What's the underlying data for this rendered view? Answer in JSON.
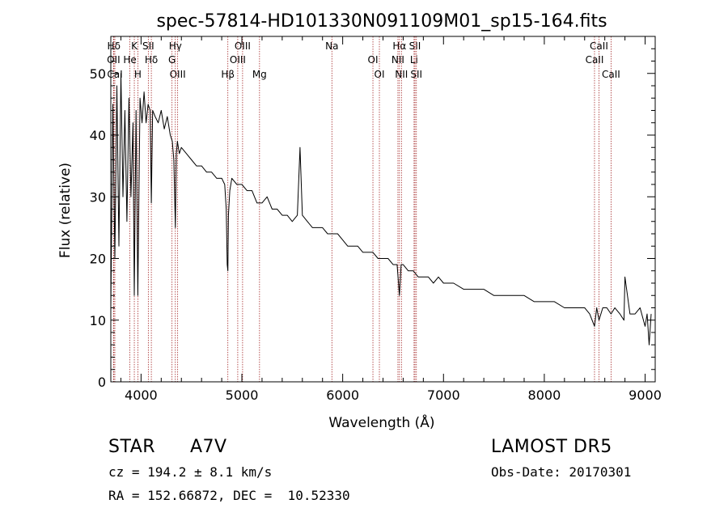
{
  "chart_data": {
    "type": "line",
    "title": "spec-57814-HD101330N091109M01_sp15-164.fits",
    "xlabel": "Wavelength (Å)",
    "ylabel": "Flux (relative)",
    "xlim": [
      3700,
      9100
    ],
    "ylim": [
      0,
      56
    ],
    "x_ticks": [
      "4000",
      "5000",
      "6000",
      "7000",
      "8000",
      "9000"
    ],
    "y_ticks": [
      "0",
      "10",
      "20",
      "30",
      "40",
      "50"
    ],
    "grid": false,
    "series": [
      {
        "x": [
          3700,
          3720,
          3740,
          3760,
          3780,
          3800,
          3820,
          3840,
          3860,
          3880,
          3900,
          3920,
          3933,
          3950,
          3968,
          3990,
          4010,
          4030,
          4050,
          4070,
          4090,
          4102,
          4115,
          4140,
          4170,
          4200,
          4230,
          4260,
          4290,
          4310,
          4325,
          4340,
          4350,
          4360,
          4380,
          4400,
          4450,
          4500,
          4550,
          4600,
          4650,
          4700,
          4750,
          4800,
          4830,
          4845,
          4855,
          4861,
          4867,
          4880,
          4900,
          4950,
          5000,
          5050,
          5100,
          5150,
          5200,
          5250,
          5300,
          5350,
          5400,
          5450,
          5500,
          5550,
          5577,
          5600,
          5650,
          5700,
          5750,
          5800,
          5850,
          5900,
          5950,
          6000,
          6050,
          6100,
          6150,
          6200,
          6250,
          6300,
          6350,
          6400,
          6450,
          6500,
          6540,
          6563,
          6580,
          6600,
          6650,
          6700,
          6750,
          6800,
          6850,
          6900,
          6950,
          7000,
          7100,
          7200,
          7300,
          7400,
          7500,
          7600,
          7700,
          7800,
          7900,
          8000,
          8100,
          8200,
          8300,
          8400,
          8450,
          8498,
          8520,
          8542,
          8580,
          8620,
          8662,
          8700,
          8750,
          8790,
          8800,
          8850,
          8900,
          8950,
          9000,
          9020,
          9040,
          9060
        ],
        "values": [
          12,
          45,
          20,
          48,
          22,
          50,
          30,
          44,
          26,
          46,
          30,
          42,
          14,
          44,
          14,
          46,
          42,
          47,
          42,
          45,
          44,
          29,
          44,
          43,
          42,
          44,
          41,
          43,
          40,
          39,
          36,
          25,
          37,
          39,
          37,
          38,
          37,
          36,
          35,
          35,
          34,
          34,
          33,
          33,
          32,
          28,
          19,
          18,
          27,
          31,
          33,
          32,
          32,
          31,
          31,
          29,
          29,
          30,
          28,
          28,
          27,
          27,
          26,
          27,
          38,
          27,
          26,
          25,
          25,
          25,
          24,
          24,
          24,
          23,
          22,
          22,
          22,
          21,
          21,
          21,
          20,
          20,
          20,
          19,
          19,
          14,
          19,
          19,
          18,
          18,
          17,
          17,
          17,
          16,
          17,
          16,
          16,
          15,
          15,
          15,
          14,
          14,
          14,
          14,
          13,
          13,
          13,
          12,
          12,
          12,
          11,
          9,
          12,
          10,
          12,
          12,
          11,
          12,
          11,
          10,
          17,
          11,
          11,
          12,
          9,
          11,
          6,
          11
        ]
      }
    ],
    "line_markers": [
      {
        "label": "Hδ",
        "x": 3730
      },
      {
        "label": "OII",
        "x": 3727
      },
      {
        "label": "CaI",
        "x": 3740
      },
      {
        "label": "K",
        "x": 3933
      },
      {
        "label": "He",
        "x": 3889
      },
      {
        "label": "H",
        "x": 3968
      },
      {
        "label": "SII",
        "x": 4072
      },
      {
        "label": "Hδ",
        "x": 4102
      },
      {
        "label": "OIII",
        "x": 4363
      },
      {
        "label": "Hγ",
        "x": 4340
      },
      {
        "label": "G",
        "x": 4307
      },
      {
        "label": "Hβ",
        "x": 4861
      },
      {
        "label": "OIII",
        "x": 5007
      },
      {
        "label": "OIII",
        "x": 4959
      },
      {
        "label": "Mg",
        "x": 5175
      },
      {
        "label": "Na",
        "x": 5893
      },
      {
        "label": "OI",
        "x": 6300
      },
      {
        "label": "OI",
        "x": 6364
      },
      {
        "label": "Hα",
        "x": 6563
      },
      {
        "label": "NII",
        "x": 6548
      },
      {
        "label": "NII",
        "x": 6583
      },
      {
        "label": "SII",
        "x": 6717
      },
      {
        "label": "Li",
        "x": 6708
      },
      {
        "label": "SII",
        "x": 6731
      },
      {
        "label": "CaII",
        "x": 8542
      },
      {
        "label": "CaII",
        "x": 8498
      },
      {
        "label": "CaII",
        "x": 8662
      }
    ]
  },
  "info": {
    "class_label": "STAR",
    "subclass": "A7V",
    "survey": "LAMOST DR5",
    "cz": "cz = 194.2 ± 8.1 km/s",
    "obs_date": "Obs-Date: 20170301",
    "coords": "RA = 152.66872, DEC =  10.52330"
  }
}
